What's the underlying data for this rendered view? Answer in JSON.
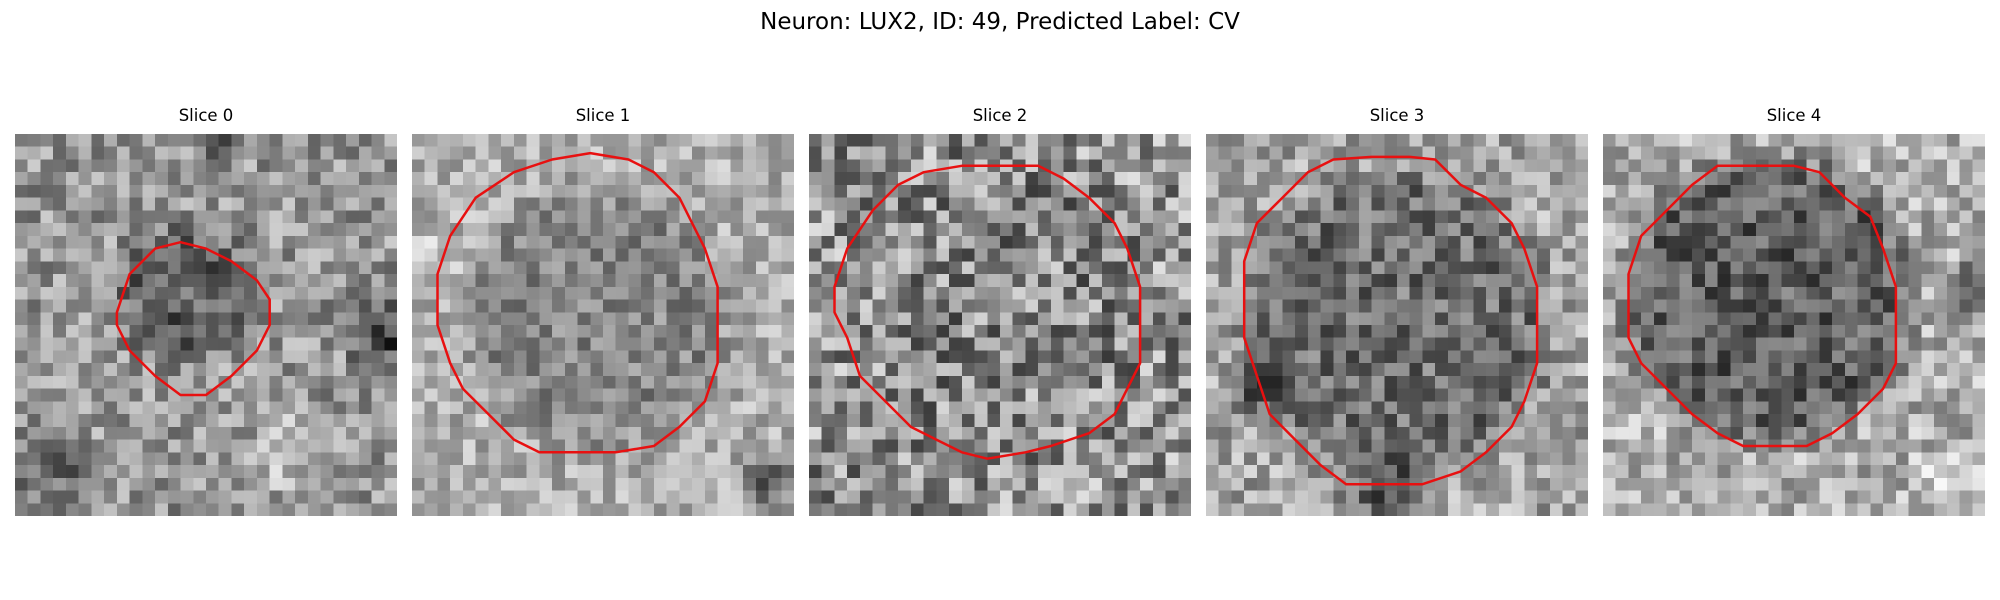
{
  "figure": {
    "title": "Neuron: LUX2, ID: 49, Predicted Label: CV",
    "outline_color": "#e81010"
  },
  "panels": [
    {
      "title": "Slice 0"
    },
    {
      "title": "Slice 1"
    },
    {
      "title": "Slice 2"
    },
    {
      "title": "Slice 3"
    },
    {
      "title": "Slice 4"
    }
  ]
}
